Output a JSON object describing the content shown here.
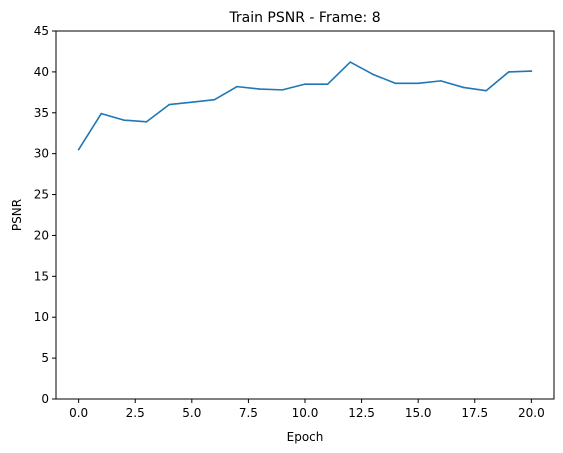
{
  "chart_data": {
    "type": "line",
    "title": "Train PSNR - Frame: 8",
    "xlabel": "Epoch",
    "ylabel": "PSNR",
    "xlim": [
      -1.0,
      21.0
    ],
    "ylim": [
      0,
      45
    ],
    "xticks": [
      0.0,
      2.5,
      5.0,
      7.5,
      10.0,
      12.5,
      15.0,
      17.5,
      20.0
    ],
    "xtick_labels": [
      "0.0",
      "2.5",
      "5.0",
      "7.5",
      "10.0",
      "12.5",
      "15.0",
      "17.5",
      "20.0"
    ],
    "yticks": [
      0,
      5,
      10,
      15,
      20,
      25,
      30,
      35,
      40,
      45
    ],
    "ytick_labels": [
      "0",
      "5",
      "10",
      "15",
      "20",
      "25",
      "30",
      "35",
      "40",
      "45"
    ],
    "grid": false,
    "series": [
      {
        "color": "#1f77b4",
        "x": [
          0,
          1,
          2,
          3,
          4,
          5,
          6,
          7,
          8,
          9,
          10,
          11,
          12,
          13,
          14,
          15,
          16,
          17,
          18,
          19,
          20
        ],
        "values": [
          30.5,
          34.9,
          34.1,
          33.9,
          36.0,
          36.3,
          36.6,
          38.2,
          37.9,
          37.8,
          38.5,
          38.5,
          41.2,
          39.7,
          38.6,
          38.6,
          38.9,
          38.1,
          37.7,
          40.0,
          40.1
        ]
      }
    ]
  }
}
